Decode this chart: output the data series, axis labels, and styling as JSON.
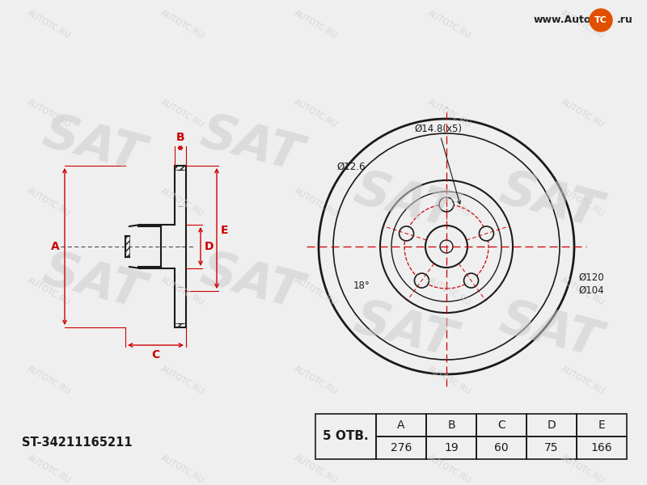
{
  "bg_color": "#efefef",
  "part_number": "ST-34211165211",
  "holes": 5,
  "holes_label": "5 ОТВ.",
  "dim_A": 276,
  "dim_B": 19,
  "dim_C": 60,
  "dim_D": 75,
  "dim_E": 166,
  "bolt_circle_label": "Ø14.8(x5)",
  "angle_label": "18°",
  "dia_label_1": "Ø12.6",
  "dia_label_2": "Ø120",
  "dia_label_3": "Ø104",
  "dim_color": "#cc0000",
  "line_color": "#1a1a1a",
  "wm_color": "#cccccc",
  "table_headers": [
    "A",
    "B",
    "C",
    "D",
    "E"
  ],
  "table_values": [
    "276",
    "19",
    "60",
    "75",
    "166"
  ],
  "logo_text1": "www.Auto",
  "logo_text2": "TC",
  "logo_text3": ".ru",
  "logo_bg": "#e05000",
  "sat_wm": "SAT",
  "autotc_wm": "AUTOTC.RU"
}
